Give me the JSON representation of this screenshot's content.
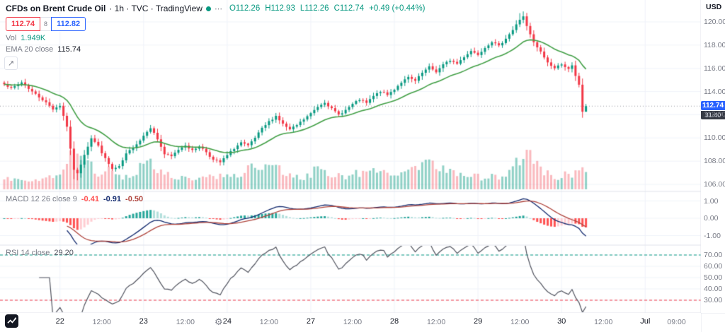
{
  "ui": {
    "legend": {
      "symbol": "CFDs on Brent Crude Oil",
      "meta": "· 1h · TVC · TradingView",
      "o": "O112.26",
      "h": "H112.93",
      "l": "L112.26",
      "c": "C112.74",
      "chg": "+0.49 (+0.44%)"
    },
    "quote": {
      "sell": "112.74",
      "spread": "8",
      "buy": "112.82"
    },
    "vol": {
      "label": "Vol",
      "value": "1.949K"
    },
    "ema": {
      "label": "EMA 20 close",
      "value": "115.74"
    },
    "macd": {
      "label": "MACD 12 26 close 9",
      "values": [
        {
          "text": "-0.41",
          "color": "#ff5252"
        },
        {
          "text": "-0.91",
          "color": "#142b6f"
        },
        {
          "text": "-0.50",
          "color": "#b0443c"
        }
      ]
    },
    "rsi": {
      "label": "RSI 14 close",
      "value": "29.20"
    },
    "axis": {
      "currency": "USD",
      "last_price": "112.74",
      "countdown": "31:40"
    }
  },
  "colors": {
    "up": "#089981",
    "down": "#f23645",
    "vol_up": "rgba(8,153,129,0.45)",
    "vol_down": "rgba(242,54,69,0.35)",
    "ema_line": "#43a047",
    "macd_line": "#142b6f",
    "signal_line": "#b0443c",
    "hist_up": "#26a69a",
    "hist_up_weak": "#b2dfdb",
    "hist_down": "#ff5252",
    "hist_down_weak": "#ffcdd2",
    "rsi_line": "#50535e",
    "band_upper": "#089981",
    "band_lower": "#f23645",
    "grid": "#f0f3fa",
    "separator": "#e0e3eb",
    "accent": "#2962ff",
    "text_dark": "#131722",
    "text_gray": "#787b86"
  },
  "chart_data": {
    "type": "candlestick",
    "title": "CFDs on Brent Crude Oil",
    "interval": "1h",
    "exchange": "TVC",
    "ohlc": {
      "open": 112.26,
      "high": 112.93,
      "low": 112.26,
      "close": 112.74,
      "change": 0.49,
      "change_pct": 0.44
    },
    "last_price": 112.74,
    "bars": 168,
    "price_axis": {
      "currency": "USD",
      "ticks": [
        120,
        118,
        116,
        114,
        112,
        110,
        108,
        106
      ],
      "approx_min": 105.6,
      "approx_max": 121.9
    },
    "close_keypoints": [
      [
        0,
        114.7
      ],
      [
        2,
        114.25
      ],
      [
        5,
        114.8
      ],
      [
        8,
        114.0
      ],
      [
        11,
        113.3
      ],
      [
        14,
        112.5
      ],
      [
        16,
        112.8
      ],
      [
        18,
        111.0
      ],
      [
        19,
        109.0
      ],
      [
        20,
        107.3
      ],
      [
        21,
        106.9
      ],
      [
        23,
        108.6
      ],
      [
        25,
        110.0
      ],
      [
        27,
        109.3
      ],
      [
        29,
        108.2
      ],
      [
        31,
        107.3
      ],
      [
        33,
        107.5
      ],
      [
        35,
        108.6
      ],
      [
        37,
        109.2
      ],
      [
        39,
        109.8
      ],
      [
        41,
        110.6
      ],
      [
        42,
        110.9
      ],
      [
        44,
        109.9
      ],
      [
        46,
        108.6
      ],
      [
        48,
        108.4
      ],
      [
        50,
        109.0
      ],
      [
        52,
        109.4
      ],
      [
        54,
        108.9
      ],
      [
        56,
        109.3
      ],
      [
        58,
        108.8
      ],
      [
        60,
        108.1
      ],
      [
        62,
        107.9
      ],
      [
        64,
        108.5
      ],
      [
        66,
        109.1
      ],
      [
        68,
        109.6
      ],
      [
        70,
        109.3
      ],
      [
        72,
        110.0
      ],
      [
        74,
        110.8
      ],
      [
        76,
        111.4
      ],
      [
        78,
        111.9
      ],
      [
        80,
        111.2
      ],
      [
        82,
        110.7
      ],
      [
        84,
        111.1
      ],
      [
        86,
        111.6
      ],
      [
        88,
        112.1
      ],
      [
        90,
        112.7
      ],
      [
        92,
        113.1
      ],
      [
        94,
        112.5
      ],
      [
        96,
        112.0
      ],
      [
        98,
        112.4
      ],
      [
        100,
        112.9
      ],
      [
        102,
        113.3
      ],
      [
        104,
        113.0
      ],
      [
        106,
        113.6
      ],
      [
        108,
        114.0
      ],
      [
        110,
        113.7
      ],
      [
        112,
        114.2
      ],
      [
        114,
        114.8
      ],
      [
        116,
        115.2
      ],
      [
        118,
        114.9
      ],
      [
        120,
        115.6
      ],
      [
        122,
        116.1
      ],
      [
        124,
        115.7
      ],
      [
        126,
        116.3
      ],
      [
        128,
        116.7
      ],
      [
        130,
        116.4
      ],
      [
        132,
        117.0
      ],
      [
        134,
        117.5
      ],
      [
        136,
        117.2
      ],
      [
        138,
        117.8
      ],
      [
        140,
        118.3
      ],
      [
        142,
        117.9
      ],
      [
        144,
        118.6
      ],
      [
        146,
        119.3
      ],
      [
        148,
        120.2
      ],
      [
        149,
        120.5
      ],
      [
        150,
        119.6
      ],
      [
        152,
        118.2
      ],
      [
        154,
        117.4
      ],
      [
        156,
        116.5
      ],
      [
        158,
        116.0
      ],
      [
        160,
        116.4
      ],
      [
        162,
        115.9
      ],
      [
        163,
        116.2
      ],
      [
        164,
        115.3
      ],
      [
        165,
        114.6
      ],
      [
        166,
        112.26
      ],
      [
        167,
        112.74
      ]
    ],
    "volume_last": "1.949K",
    "volume_keypoints": [
      [
        0,
        0.25
      ],
      [
        6,
        0.2
      ],
      [
        12,
        0.25
      ],
      [
        16,
        0.35
      ],
      [
        19,
        0.8
      ],
      [
        21,
        0.95
      ],
      [
        23,
        0.7
      ],
      [
        25,
        0.55
      ],
      [
        28,
        0.35
      ],
      [
        31,
        0.5
      ],
      [
        34,
        0.3
      ],
      [
        38,
        0.4
      ],
      [
        41,
        0.75
      ],
      [
        43,
        0.6
      ],
      [
        46,
        0.45
      ],
      [
        50,
        0.3
      ],
      [
        54,
        0.25
      ],
      [
        58,
        0.3
      ],
      [
        62,
        0.35
      ],
      [
        66,
        0.3
      ],
      [
        70,
        0.55
      ],
      [
        73,
        0.45
      ],
      [
        76,
        0.6
      ],
      [
        79,
        0.5
      ],
      [
        82,
        0.35
      ],
      [
        86,
        0.3
      ],
      [
        90,
        0.5
      ],
      [
        94,
        0.35
      ],
      [
        98,
        0.3
      ],
      [
        101,
        0.45
      ],
      [
        104,
        0.35
      ],
      [
        108,
        0.5
      ],
      [
        112,
        0.35
      ],
      [
        116,
        0.4
      ],
      [
        120,
        0.6
      ],
      [
        122,
        0.7
      ],
      [
        125,
        0.45
      ],
      [
        128,
        0.5
      ],
      [
        131,
        0.35
      ],
      [
        134,
        0.4
      ],
      [
        137,
        0.3
      ],
      [
        140,
        0.35
      ],
      [
        143,
        0.3
      ],
      [
        146,
        0.5
      ],
      [
        149,
        0.95
      ],
      [
        151,
        0.85
      ],
      [
        153,
        0.6
      ],
      [
        156,
        0.4
      ],
      [
        159,
        0.3
      ],
      [
        161,
        0.35
      ],
      [
        163,
        0.3
      ],
      [
        165,
        0.5
      ],
      [
        167,
        0.45
      ]
    ],
    "indicators": {
      "ema": {
        "period": 20,
        "source": "close",
        "last": 115.74
      },
      "macd": {
        "fast": 12,
        "slow": 26,
        "source": "close",
        "signal": 9,
        "last_values": [
          -0.41,
          -0.91,
          -0.5
        ],
        "axis_ticks": [
          1,
          0,
          -1
        ]
      },
      "rsi": {
        "period": 14,
        "source": "close",
        "last": 29.2,
        "axis_ticks": [
          70,
          60,
          50,
          40,
          30
        ],
        "bands": [
          70,
          30
        ]
      }
    },
    "time_axis": [
      {
        "label": "22",
        "h": 16,
        "major": true
      },
      {
        "label": "12:00",
        "h": 28,
        "major": false
      },
      {
        "label": "23",
        "h": 40,
        "major": true
      },
      {
        "label": "12:00",
        "h": 52,
        "major": false
      },
      {
        "label": "24",
        "h": 64,
        "major": true
      },
      {
        "label": "12:00",
        "h": 76,
        "major": false
      },
      {
        "label": "27",
        "h": 88,
        "major": true
      },
      {
        "label": "12:00",
        "h": 100,
        "major": false
      },
      {
        "label": "28",
        "h": 112,
        "major": true
      },
      {
        "label": "12:00",
        "h": 124,
        "major": false
      },
      {
        "label": "29",
        "h": 136,
        "major": true
      },
      {
        "label": "12:00",
        "h": 148,
        "major": false
      },
      {
        "label": "30",
        "h": 160,
        "major": true
      },
      {
        "label": "12:00",
        "h": 172,
        "major": false
      },
      {
        "label": "Jul",
        "h": 184,
        "major": true
      },
      {
        "label": "09:00",
        "h": 193,
        "major": false
      }
    ],
    "day_gridline_hours": [
      16,
      40,
      64,
      88,
      112,
      136,
      160,
      184
    ]
  }
}
